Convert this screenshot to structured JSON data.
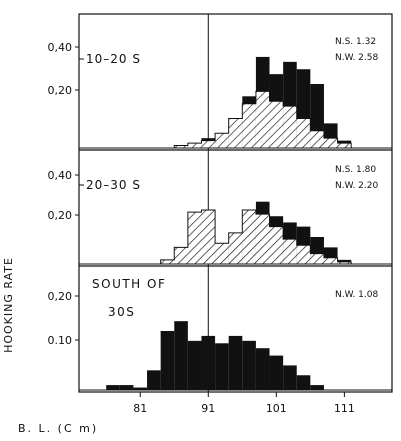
{
  "chart_data": [
    {
      "type": "histogram",
      "panel_label": "10-20 S",
      "annotations": [
        "N.S. 1.32",
        "N.W. 2.58"
      ],
      "yticks": [
        "0,40",
        "0,20"
      ],
      "ylim": [
        0,
        0.52
      ],
      "series": [
        {
          "name": "N.W.",
          "fill": "black",
          "x": [
            75,
            77,
            79,
            81,
            83,
            85,
            87,
            89,
            91,
            93,
            95,
            97,
            99,
            101,
            103,
            105,
            107,
            109,
            111,
            113
          ],
          "values": [
            0,
            0,
            0,
            0,
            0,
            0,
            0.01,
            0.02,
            0.04,
            0.06,
            0.12,
            0.21,
            0.37,
            0.3,
            0.35,
            0.32,
            0.26,
            0.1,
            0.03,
            0
          ]
        },
        {
          "name": "N.S.",
          "fill": "hatched",
          "x": [
            75,
            77,
            79,
            81,
            83,
            85,
            87,
            89,
            91,
            93,
            95,
            97,
            99,
            101,
            103,
            105,
            107,
            109,
            111,
            113
          ],
          "values": [
            0,
            0,
            0,
            0,
            0,
            0,
            0.01,
            0.02,
            0.03,
            0.06,
            0.12,
            0.18,
            0.23,
            0.19,
            0.17,
            0.12,
            0.07,
            0.04,
            0.02,
            0
          ]
        }
      ]
    },
    {
      "type": "histogram",
      "panel_label": "20-30 S",
      "annotations": [
        "N.S. 1.80",
        "N.W. 2.20"
      ],
      "yticks": [
        "0,40",
        "0,20"
      ],
      "ylim": [
        0,
        0.52
      ],
      "series": [
        {
          "name": "N.W.",
          "fill": "black",
          "x": [
            75,
            77,
            79,
            81,
            83,
            85,
            87,
            89,
            91,
            93,
            95,
            97,
            99,
            101,
            103,
            105,
            107,
            109,
            111,
            113
          ],
          "values": [
            0,
            0,
            0,
            0,
            0,
            0,
            0,
            0.01,
            0.01,
            0.06,
            0.1,
            0.2,
            0.3,
            0.23,
            0.2,
            0.18,
            0.13,
            0.08,
            0.02,
            0
          ]
        },
        {
          "name": "N.S.",
          "fill": "hatched",
          "x": [
            75,
            77,
            79,
            81,
            83,
            85,
            87,
            89,
            91,
            93,
            95,
            97,
            99,
            101,
            103,
            105,
            107,
            109,
            111,
            113
          ],
          "values": [
            0,
            0,
            0,
            0,
            0,
            0.02,
            0.08,
            0.25,
            0.26,
            0.1,
            0.15,
            0.26,
            0.24,
            0.18,
            0.12,
            0.09,
            0.05,
            0.03,
            0.01,
            0
          ]
        }
      ]
    },
    {
      "type": "histogram",
      "panel_label": "SOUTH OF 30S",
      "annotations": [
        "N.W. 1.08"
      ],
      "yticks": [
        "0,20",
        "0.10"
      ],
      "ylim": [
        0,
        0.24
      ],
      "series": [
        {
          "name": "N.W.",
          "fill": "black",
          "x": [
            75,
            77,
            79,
            81,
            83,
            85,
            87,
            89,
            91,
            93,
            95,
            97,
            99,
            101,
            103,
            105,
            107,
            109,
            111,
            113
          ],
          "values": [
            0,
            0.01,
            0.01,
            0.005,
            0.04,
            0.12,
            0.14,
            0.1,
            0.11,
            0.095,
            0.11,
            0.1,
            0.085,
            0.07,
            0.05,
            0.03,
            0.01,
            0,
            0,
            0
          ]
        }
      ]
    }
  ],
  "axis": {
    "ylabel": "HOOKING RATE",
    "xlabel": "B. L. (C m)",
    "xticks": [
      "81",
      "91",
      "101",
      "111"
    ],
    "xlim": [
      72,
      118
    ],
    "vline_at": 91
  }
}
